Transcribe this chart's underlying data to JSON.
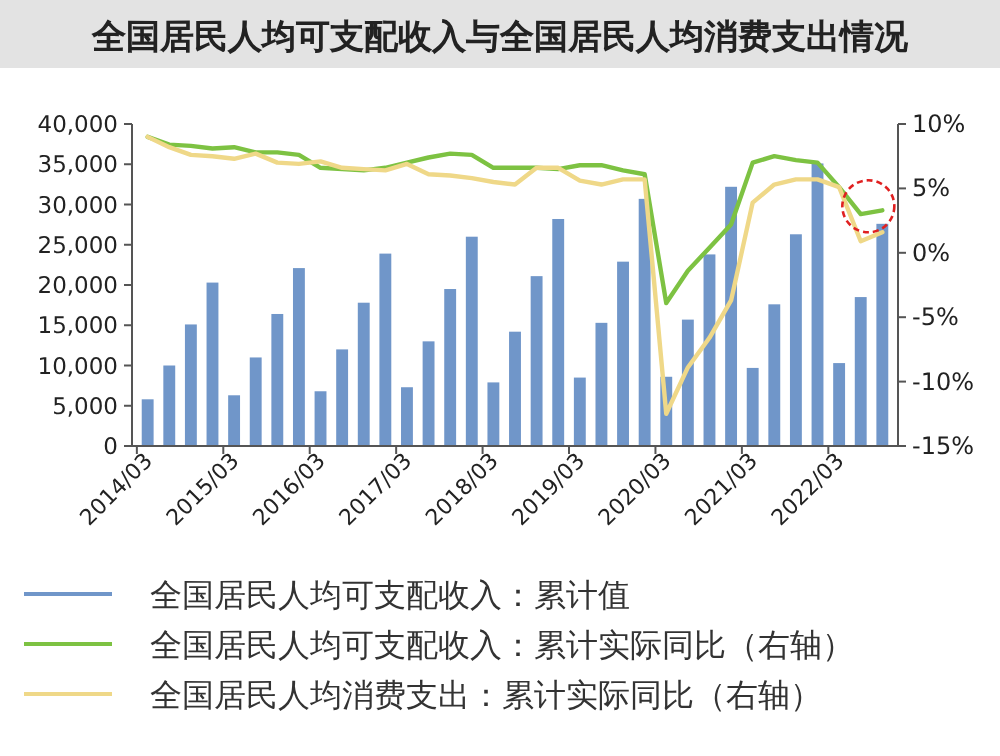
{
  "chart_data": {
    "type": "bar",
    "title": "全国居民人均可支配收入与全国居民人均消费支出情况",
    "categories": [
      "2014/03",
      null,
      null,
      null,
      "2015/03",
      null,
      null,
      null,
      "2016/03",
      null,
      null,
      null,
      "2017/03",
      null,
      null,
      null,
      "2018/03",
      null,
      null,
      null,
      "2019/03",
      null,
      null,
      null,
      "2020/03",
      null,
      null,
      null,
      "2021/03",
      null,
      null,
      null,
      "2022/03",
      null,
      null
    ],
    "series": [
      {
        "name": "全国居民人均可支配收入：累计值",
        "color": "#7096c9",
        "values": [
          5800,
          10000,
          15100,
          20300,
          6300,
          11000,
          16400,
          22100,
          6800,
          12000,
          17800,
          23900,
          7300,
          13000,
          19500,
          26000,
          7900,
          14200,
          21100,
          28200,
          8500,
          15300,
          22900,
          30700,
          8600,
          15700,
          23800,
          32200,
          9700,
          17600,
          26300,
          35100,
          10300,
          18500,
          27600
        ]
      },
      {
        "name": "全国居民人均可支配收入：累计实际同比（右轴）",
        "type": "line",
        "axis": "y2",
        "color": "#7dc242",
        "values": [
          9.0,
          8.4,
          8.3,
          8.1,
          8.2,
          7.8,
          7.8,
          7.6,
          6.6,
          6.5,
          6.4,
          6.6,
          7.0,
          7.4,
          7.7,
          7.6,
          6.6,
          6.6,
          6.6,
          6.5,
          6.8,
          6.8,
          6.4,
          6.1,
          -3.9,
          -1.4,
          0.4,
          2.2,
          7.0,
          7.5,
          7.2,
          7.0,
          5.1,
          3.0,
          3.3
        ]
      },
      {
        "name": "全国居民人均消费支出：累计实际同比（右轴）",
        "type": "line",
        "axis": "y2",
        "color": "#efd888",
        "values": [
          9.0,
          8.2,
          7.6,
          7.5,
          7.3,
          7.7,
          7.0,
          6.9,
          7.1,
          6.6,
          6.5,
          6.4,
          6.9,
          6.1,
          6.0,
          5.8,
          5.5,
          5.3,
          6.6,
          6.6,
          5.6,
          5.3,
          5.7,
          5.7,
          -12.5,
          -8.9,
          -6.6,
          -3.7,
          3.9,
          5.3,
          5.7,
          5.7,
          5.1,
          0.9,
          1.6
        ]
      }
    ],
    "ylim": [
      0,
      40000
    ],
    "yticks": [
      0,
      {
        "value": 5000,
        "label": "5,000"
      },
      {
        "value": 10000,
        "label": "10,000"
      },
      {
        "value": 15000,
        "label": "15,000"
      },
      {
        "value": 20000,
        "label": "20,000"
      },
      {
        "value": 25000,
        "label": "25,000"
      },
      {
        "value": 30000,
        "label": "30,000"
      },
      {
        "value": 35000,
        "label": "35,000"
      },
      {
        "value": 40000,
        "label": "40,000"
      }
    ],
    "y2lim": [
      -15,
      10
    ],
    "y2ticks": [
      {
        "value": -15,
        "label": "-15%"
      },
      {
        "value": -10,
        "label": "-10%"
      },
      {
        "value": -5,
        "label": "-5%"
      },
      {
        "value": 0,
        "label": "0%"
      },
      {
        "value": 5,
        "label": "5%"
      },
      {
        "value": 10,
        "label": "10%"
      }
    ],
    "legend": "bottom",
    "grid": false
  }
}
